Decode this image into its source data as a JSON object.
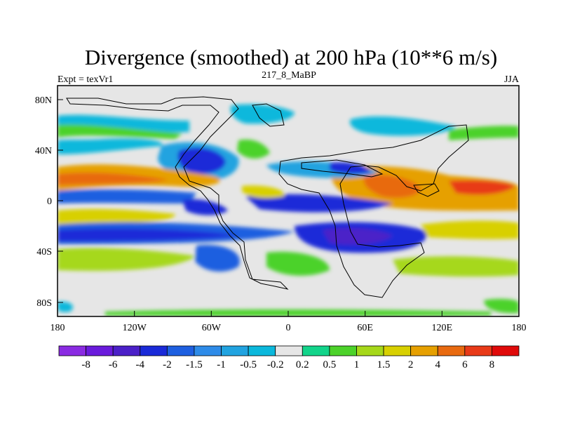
{
  "title": "Divergence (smoothed) at 200 hPa (10**6 m/s)",
  "left_label": "Expt = texVr1",
  "center_label": "217_8_MaBP",
  "right_label": "JJA",
  "y_ticks": [
    "80N",
    "40N",
    "0",
    "40S",
    "80S"
  ],
  "x_ticks": [
    "180",
    "120W",
    "60W",
    "0",
    "60E",
    "120E",
    "180"
  ],
  "colorbar_labels": [
    "-8",
    "-6",
    "-4",
    "-2",
    "-1.5",
    "-1",
    "-0.5",
    "-0.2",
    "0.2",
    "0.5",
    "1",
    "1.5",
    "2",
    "4",
    "6",
    "8"
  ],
  "colorbar_colors": [
    "#8a2be2",
    "#6a1bdc",
    "#4b20c8",
    "#1a2ad8",
    "#1e5fe0",
    "#2e8be8",
    "#21a3e0",
    "#0bb8dc",
    "#e6e6e6",
    "#12d48a",
    "#4cd22a",
    "#a6d81a",
    "#d8d000",
    "#e6a000",
    "#e86a10",
    "#e83a18",
    "#e00a0a"
  ]
}
